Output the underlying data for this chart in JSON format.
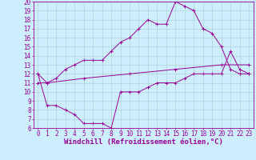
{
  "line_color": "#990099",
  "bg_color": "#cceeff",
  "grid_color": "#aacccc",
  "xlabel": "Windchill (Refroidissement éolien,°C)",
  "xlabel_fontsize": 6.5,
  "tick_fontsize": 5.5,
  "xlim": [
    -0.5,
    23.5
  ],
  "ylim": [
    6,
    20
  ],
  "yticks": [
    6,
    7,
    8,
    9,
    10,
    11,
    12,
    13,
    14,
    15,
    16,
    17,
    18,
    19,
    20
  ],
  "xticks": [
    0,
    1,
    2,
    3,
    4,
    5,
    6,
    7,
    8,
    9,
    10,
    11,
    12,
    13,
    14,
    15,
    16,
    17,
    18,
    19,
    20,
    21,
    22,
    23
  ],
  "top_curve_x": [
    0,
    1,
    2,
    3,
    4,
    5,
    6,
    7,
    8,
    9,
    10,
    11,
    12,
    13,
    14,
    15,
    16,
    17,
    18,
    19,
    20,
    21,
    22,
    23
  ],
  "top_curve_y": [
    12,
    11,
    11.5,
    12.5,
    13,
    13.5,
    13.5,
    13.5,
    14.5,
    15.5,
    16,
    17,
    18,
    17.5,
    17.5,
    20,
    19.5,
    19,
    17,
    16.5,
    15,
    12.5,
    12,
    12
  ],
  "bottom_curve_x": [
    0,
    1,
    2,
    3,
    4,
    5,
    6,
    7,
    8,
    9,
    10,
    11,
    12,
    13,
    14,
    15,
    16,
    17,
    18,
    19,
    20,
    21,
    22,
    23
  ],
  "bottom_curve_y": [
    12,
    8.5,
    8.5,
    8,
    7.5,
    6.5,
    6.5,
    6.5,
    6,
    10,
    10,
    10,
    10.5,
    11,
    11,
    11,
    11.5,
    12,
    12,
    12,
    12,
    14.5,
    12.5,
    12
  ],
  "diag_x": [
    0,
    1,
    5,
    10,
    15,
    20,
    23
  ],
  "diag_y": [
    11,
    11,
    11.5,
    12,
    12.5,
    13,
    13
  ]
}
